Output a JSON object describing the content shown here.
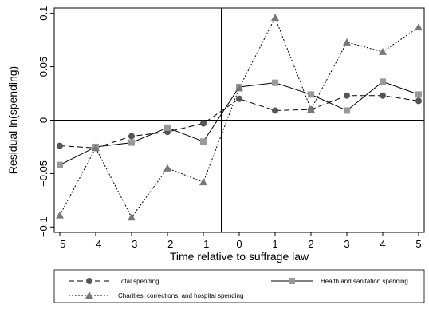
{
  "chart_data": {
    "type": "line",
    "xlabel": "Time relative to suffrage law",
    "ylabel": "Residual ln(spending)",
    "xlim": [
      -5,
      5
    ],
    "ylim": [
      -0.105,
      0.105
    ],
    "x": [
      -5,
      -4,
      -3,
      -2,
      -1,
      0,
      1,
      2,
      3,
      4,
      5
    ],
    "x_tick_labels": [
      "−5",
      "−4",
      "−3",
      "−2",
      "−1",
      "0",
      "1",
      "2",
      "3",
      "4",
      "5"
    ],
    "y_ticks": [
      -0.1,
      -0.05,
      0,
      0.05,
      0.1
    ],
    "y_tick_labels": [
      "−0.1",
      "−0.05",
      "0",
      "0.05",
      "0.1"
    ],
    "vertical_reference_line_x": -0.5,
    "horizontal_reference_line_y": 0,
    "grid": false,
    "legend_position": "bottom",
    "series": [
      {
        "name": "Total spending",
        "values": [
          -0.024,
          -0.026,
          -0.015,
          -0.011,
          -0.003,
          0.02,
          0.009,
          0.01,
          0.023,
          0.023,
          0.018
        ],
        "line_style": "dashed",
        "marker": "circle",
        "color": "#555555"
      },
      {
        "name": "Health and sanitation spending",
        "values": [
          -0.042,
          -0.025,
          -0.021,
          -0.007,
          -0.02,
          0.031,
          0.035,
          0.024,
          0.009,
          0.036,
          0.024
        ],
        "line_style": "solid",
        "marker": "square",
        "color": "#999999"
      },
      {
        "name": "Charities, corrections, and hospital spending",
        "values": [
          -0.089,
          -0.026,
          -0.091,
          -0.045,
          -0.058,
          0.03,
          0.096,
          0.01,
          0.073,
          0.064,
          0.087
        ],
        "line_style": "dotted",
        "marker": "triangle",
        "color": "#777777"
      }
    ]
  }
}
